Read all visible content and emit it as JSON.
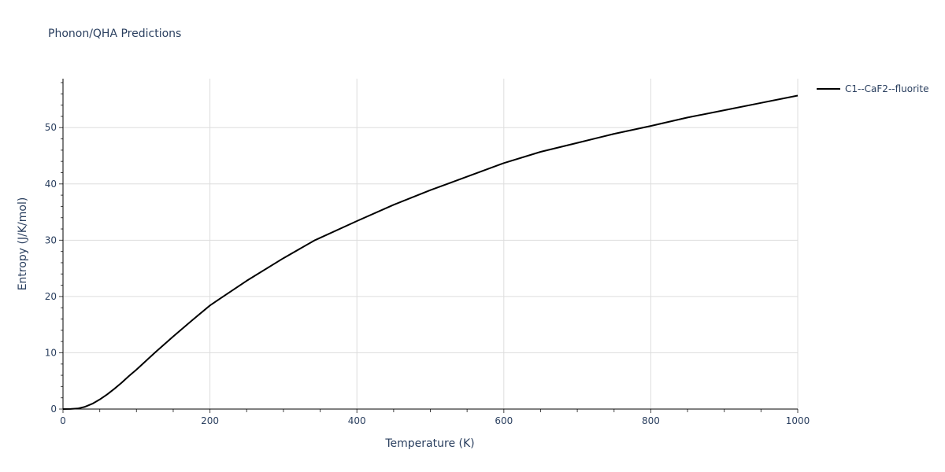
{
  "title": "Phonon/QHA Predictions",
  "chart_data": {
    "type": "line",
    "title": "Phonon/QHA Predictions",
    "xlabel": "Temperature (K)",
    "ylabel": "Entropy (J/K/mol)",
    "xlim": [
      0,
      1000
    ],
    "ylim": [
      0,
      58.7
    ],
    "x_ticks": [
      0,
      200,
      400,
      600,
      800,
      1000
    ],
    "y_ticks": [
      0,
      10,
      20,
      30,
      40,
      50
    ],
    "grid": true,
    "legend_position": "right",
    "series": [
      {
        "name": "C1--CaF2--fluorite",
        "color": "#000000",
        "x": [
          0,
          10,
          20,
          30,
          40,
          50,
          60,
          70,
          80,
          90,
          100,
          125,
          150,
          175,
          200,
          218,
          250,
          300,
          343,
          400,
          450,
          500,
          523,
          600,
          650,
          700,
          750,
          800,
          850,
          900,
          950,
          1000
        ],
        "values": [
          0,
          0.01,
          0.1,
          0.4,
          0.95,
          1.7,
          2.6,
          3.6,
          4.7,
          5.9,
          7.0,
          10.0,
          12.9,
          15.7,
          18.4,
          20.0,
          22.8,
          26.8,
          30.0,
          33.4,
          36.3,
          38.9,
          40.0,
          43.7,
          45.7,
          47.3,
          48.9,
          50.3,
          51.8,
          53.1,
          54.4,
          55.7
        ]
      }
    ]
  },
  "legend": {
    "items": [
      {
        "label": "C1--CaF2--fluorite",
        "color": "#000000"
      }
    ]
  }
}
